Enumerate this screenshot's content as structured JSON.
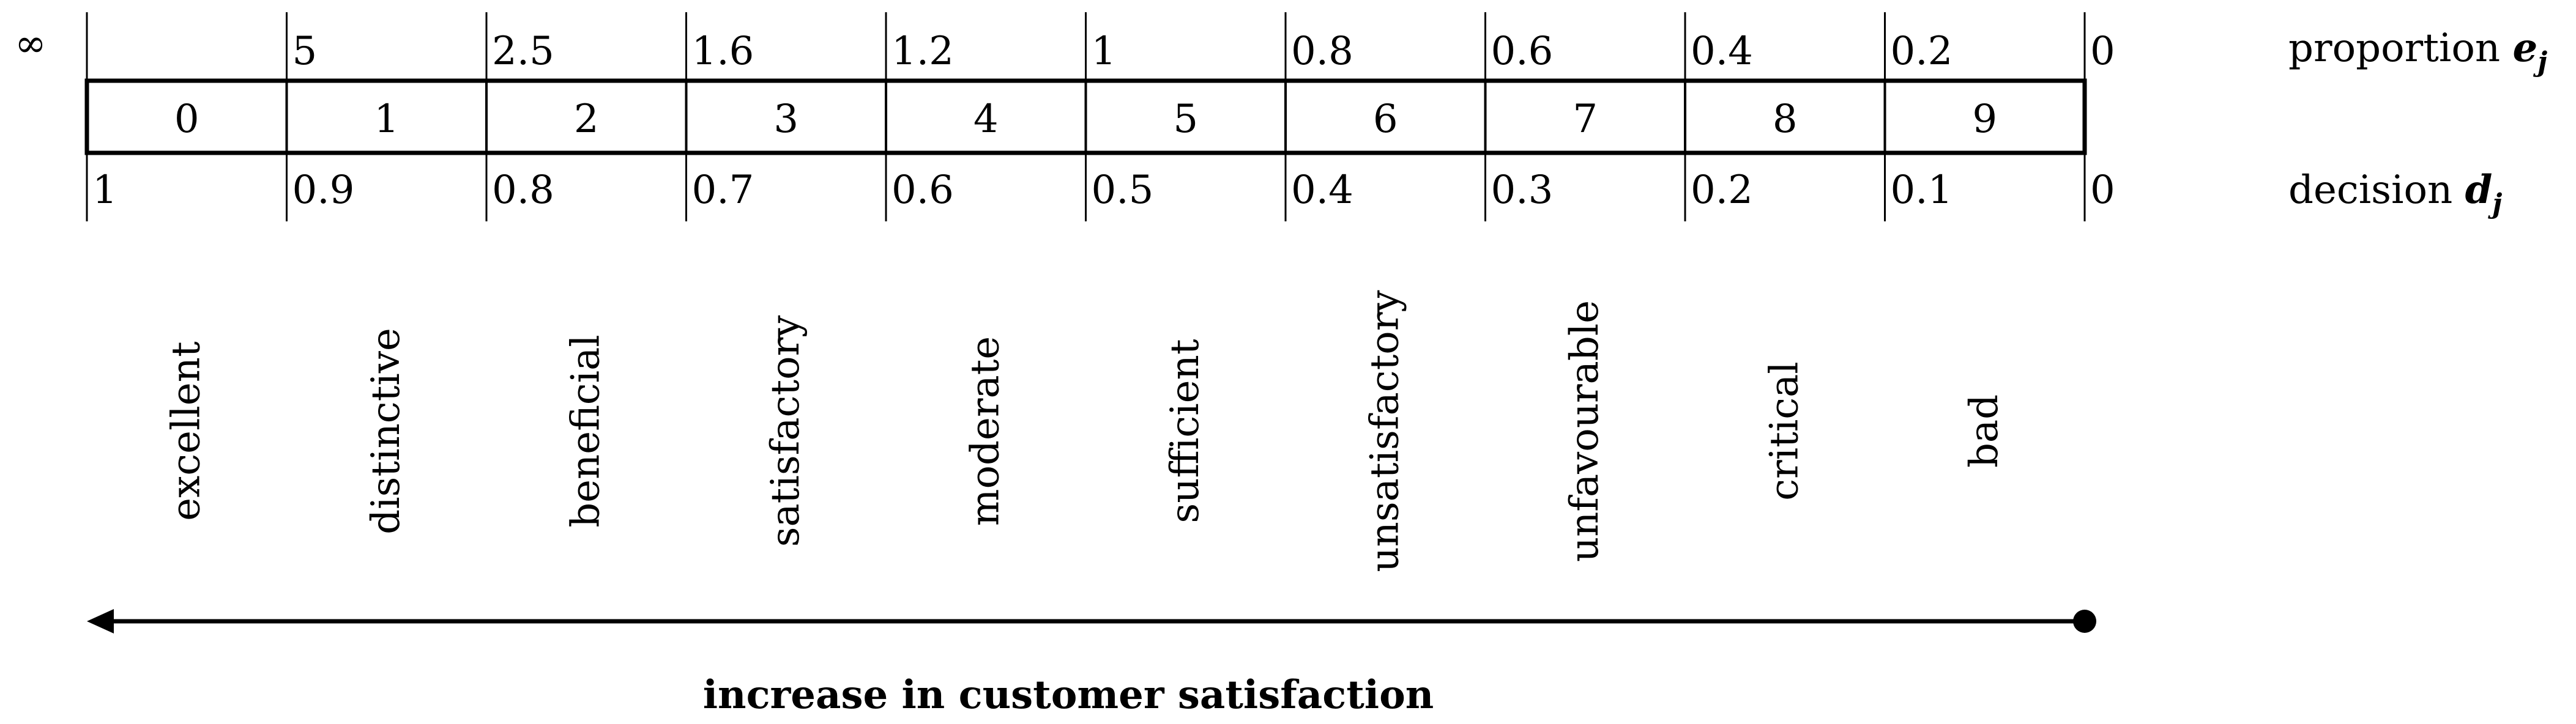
{
  "infinity_symbol": "∞",
  "proportion_values": [
    "5",
    "2.5",
    "1.6",
    "1.2",
    "1",
    "0.8",
    "0.6",
    "0.4",
    "0.2",
    "0"
  ],
  "proportion_label": {
    "text": "proportion ",
    "symbol": "e",
    "subscript": "j"
  },
  "categories": [
    "0",
    "1",
    "2",
    "3",
    "4",
    "5",
    "6",
    "7",
    "8",
    "9"
  ],
  "decision_values": [
    "1",
    "0.9",
    "0.8",
    "0.7",
    "0.6",
    "0.5",
    "0.4",
    "0.3",
    "0.2",
    "0.1",
    "0"
  ],
  "decision_label": {
    "text": "decision ",
    "symbol": "d",
    "subscript": "j"
  },
  "ratings": [
    "excellent",
    "distinctive",
    "beneficial",
    "satisfactory",
    "moderate",
    "sufficient",
    "unsatisfactory",
    "unfavourable",
    "critical",
    "bad"
  ],
  "arrow_caption": "increase in customer satisfaction",
  "colors": {
    "ink": "#000000",
    "background": "#ffffff"
  }
}
